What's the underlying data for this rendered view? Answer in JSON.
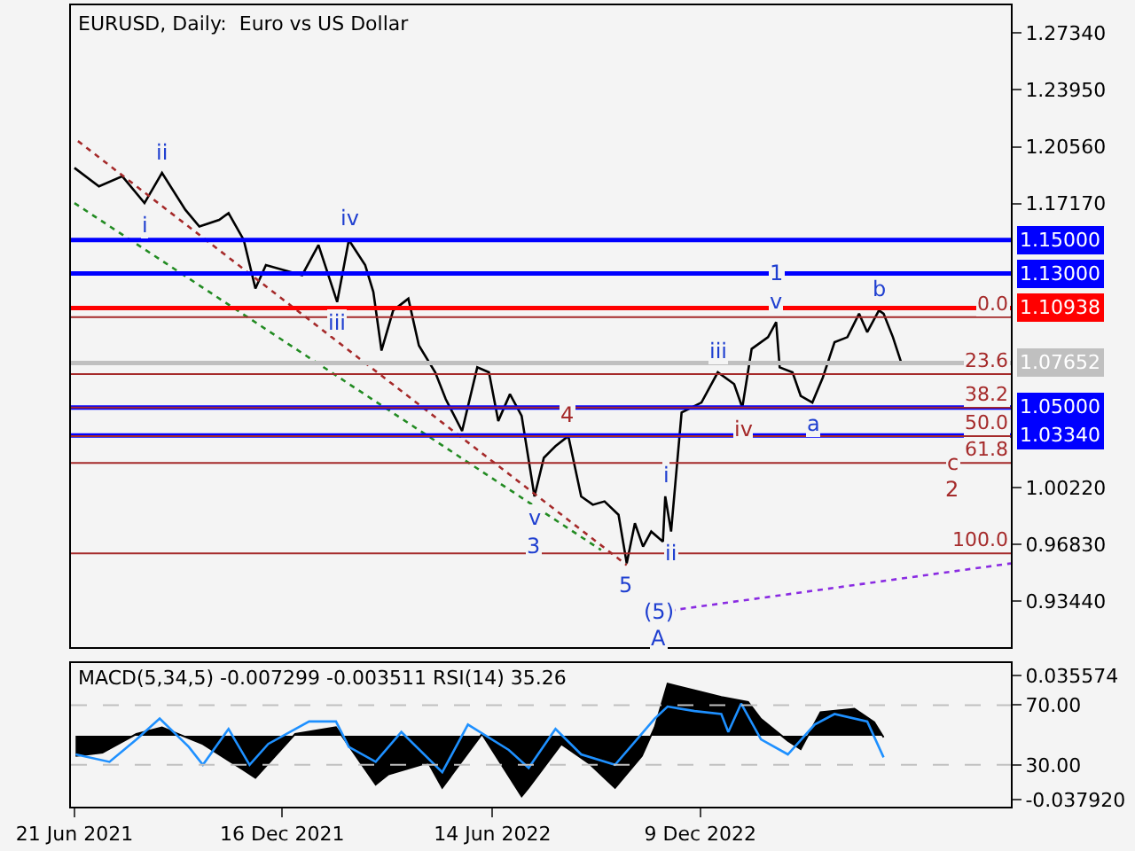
{
  "chart_data": [
    {
      "type": "line",
      "title": "EURUSD, Daily:  Euro vs US Dollar",
      "xlim": [
        "2021-06-18",
        "2023-09-01"
      ],
      "ylim": [
        0.907,
        1.29
      ],
      "tick_labels": "y",
      "yticks": [
        {
          "value": 1.2734,
          "label": "1.27340"
        },
        {
          "value": 1.2395,
          "label": "1.23950"
        },
        {
          "value": 1.2056,
          "label": "1.20560"
        },
        {
          "value": 1.1717,
          "label": "1.17170"
        },
        {
          "value": 1.0022,
          "label": "1.00220"
        },
        {
          "value": 0.9683,
          "label": "0.96830"
        },
        {
          "value": 0.9344,
          "label": "0.93440"
        }
      ],
      "series": [
        {
          "color": "#000000",
          "x": [
            "2021-06-21",
            "2021-07-12",
            "2021-08-01",
            "2021-08-20",
            "2021-09-04",
            "2021-09-24",
            "2021-10-06",
            "2021-10-23",
            "2021-10-31",
            "2021-11-13",
            "2021-11-23",
            "2021-12-02",
            "2022-01-02",
            "2022-01-16",
            "2022-02-01",
            "2022-02-11",
            "2022-02-25",
            "2022-03-04",
            "2022-03-11",
            "2022-03-21",
            "2022-04-03",
            "2022-04-12",
            "2022-04-26",
            "2022-05-05",
            "2022-05-19",
            "2022-06-01",
            "2022-06-11",
            "2022-06-19",
            "2022-06-29",
            "2022-07-09",
            "2022-07-20",
            "2022-07-28",
            "2022-08-07",
            "2022-08-18",
            "2022-08-29",
            "2022-09-08",
            "2022-09-18",
            "2022-09-30",
            "2022-10-07",
            "2022-10-14",
            "2022-10-21",
            "2022-10-28",
            "2022-11-07",
            "2022-11-09",
            "2022-11-14",
            "2022-11-23",
            "2022-12-10",
            "2022-12-24",
            "2023-01-07",
            "2023-01-14",
            "2023-01-22",
            "2023-02-05",
            "2023-02-12",
            "2023-02-15",
            "2023-02-26",
            "2023-03-05",
            "2023-03-15",
            "2023-03-24",
            "2023-04-03",
            "2023-04-14",
            "2023-04-24",
            "2023-05-01",
            "2023-05-11",
            "2023-05-15",
            "2023-05-23",
            "2023-05-30"
          ],
          "values": [
            1.193,
            1.182,
            1.188,
            1.172,
            1.19,
            1.168,
            1.158,
            1.162,
            1.166,
            1.15,
            1.121,
            1.135,
            1.129,
            1.147,
            1.113,
            1.15,
            1.135,
            1.119,
            1.084,
            1.108,
            1.115,
            1.087,
            1.071,
            1.055,
            1.036,
            1.074,
            1.071,
            1.042,
            1.058,
            1.045,
            0.997,
            1.02,
            1.027,
            1.033,
            0.997,
            0.992,
            0.994,
            0.986,
            0.957,
            0.981,
            0.967,
            0.976,
            0.97,
            0.997,
            0.976,
            1.047,
            1.053,
            1.071,
            1.064,
            1.05,
            1.085,
            1.092,
            1.101,
            1.074,
            1.071,
            1.057,
            1.053,
            1.068,
            1.089,
            1.092,
            1.106,
            1.095,
            1.108,
            1.106,
            1.092,
            1.077
          ]
        },
        {
          "color": "#228b22",
          "line_style": "dotted",
          "x": [
            "2021-06-21",
            "2022-09-15"
          ],
          "values": [
            1.172,
            0.965
          ]
        },
        {
          "color": "#a52a2a",
          "line_style": "dotted",
          "x": [
            "2021-06-24",
            "2022-10-07"
          ],
          "values": [
            1.209,
            0.956
          ]
        },
        {
          "color": "#8a2be2",
          "line_style": "dotted",
          "x": [
            "2022-11-04",
            "2023-09-01"
          ],
          "values": [
            0.928,
            0.957
          ]
        }
      ],
      "ref_lines": [
        {
          "axis": "y",
          "value": 1.15,
          "label": "1.15000",
          "color": "#0000ff"
        },
        {
          "axis": "y",
          "value": 1.13,
          "label": "1.13000",
          "color": "#0000ff"
        },
        {
          "axis": "y",
          "value": 1.10938,
          "label": "1.10938",
          "color": "#ff0000"
        },
        {
          "axis": "y",
          "value": 1.07652,
          "label": "1.07652",
          "color": "#c0c0c0"
        },
        {
          "axis": "y",
          "value": 1.05,
          "label": "1.05000",
          "color": "#0000ff"
        },
        {
          "axis": "y",
          "value": 1.0334,
          "label": "1.03340",
          "color": "#0000ff"
        },
        {
          "axis": "y",
          "value": 1.104,
          "color": "#a52a2a",
          "line_style": "solid"
        },
        {
          "axis": "y",
          "value": 1.07,
          "color": "#a52a2a",
          "line_style": "solid"
        },
        {
          "axis": "y",
          "value": 1.05,
          "color": "#a52a2a",
          "line_style": "solid"
        },
        {
          "axis": "y",
          "value": 1.033,
          "color": "#a52a2a",
          "line_style": "solid"
        },
        {
          "axis": "y",
          "value": 1.017,
          "color": "#a52a2a",
          "line_style": "solid"
        },
        {
          "axis": "y",
          "value": 0.963,
          "color": "#a52a2a",
          "line_style": "solid"
        }
      ],
      "annotations": [
        {
          "text": "i",
          "x": "2021-08-20",
          "y": 1.172
        },
        {
          "text": "ii",
          "x": "2021-09-04",
          "y": 1.19
        },
        {
          "text": "iii",
          "x": "2022-02-01",
          "y": 1.113
        },
        {
          "text": "iv",
          "x": "2022-02-11",
          "y": 1.15
        },
        {
          "text": "v",
          "x": "2022-07-20",
          "y": 0.997
        },
        {
          "text": "3",
          "x": "2022-07-20",
          "y": 0.997
        },
        {
          "text": "4",
          "x": "2022-08-18",
          "y": 1.033
        },
        {
          "text": "5",
          "x": "2022-10-07",
          "y": 0.957
        },
        {
          "text": "(5)",
          "x": "2022-11-04",
          "y": 0.928
        },
        {
          "text": "A",
          "x": "2022-11-04",
          "y": 0.928
        },
        {
          "text": "i",
          "x": "2022-11-09",
          "y": 0.997
        },
        {
          "text": "ii",
          "x": "2022-11-14",
          "y": 0.976
        },
        {
          "text": "iii",
          "x": "2022-12-24",
          "y": 1.071
        },
        {
          "text": "iv",
          "x": "2023-01-14",
          "y": 1.05
        },
        {
          "text": "v",
          "x": "2023-02-12",
          "y": 1.101
        },
        {
          "text": "1",
          "x": "2023-02-12",
          "y": 1.101
        },
        {
          "text": "a",
          "x": "2023-03-15",
          "y": 1.053
        },
        {
          "text": "b",
          "x": "2023-05-11",
          "y": 1.108
        },
        {
          "text": "c",
          "x": "2023-07-13",
          "y": 1.017
        },
        {
          "text": "2",
          "x": "2023-07-13",
          "y": 1.017
        },
        {
          "text": "0.0",
          "x": "2023-09-01",
          "y": 1.104
        },
        {
          "text": "23.6",
          "x": "2023-09-01",
          "y": 1.07
        },
        {
          "text": "38.2",
          "x": "2023-09-01",
          "y": 1.05
        },
        {
          "text": "50.0",
          "x": "2023-09-01",
          "y": 1.033
        },
        {
          "text": "61.8",
          "x": "2023-09-01",
          "y": 1.017
        },
        {
          "text": "100.0",
          "x": "2023-09-01",
          "y": 0.963
        }
      ]
    },
    {
      "type": "area",
      "title": "MACD(5,34,5) -0.007299 -0.003511 RSI(14) 35.26",
      "xlim": [
        "2021-06-18",
        "2023-09-01"
      ],
      "xticks": [
        {
          "value": "2021-06-21",
          "label": "21 Jun 2021"
        },
        {
          "value": "2021-12-16",
          "label": "16 Dec 2021"
        },
        {
          "value": "2022-06-14",
          "label": "14 Jun 2022"
        },
        {
          "value": "2022-12-09",
          "label": "9 Dec 2022"
        }
      ],
      "ylim": [
        -0.0422,
        0.0431
      ],
      "yticks": [
        {
          "value": 0.035574,
          "label": "0.035574"
        },
        {
          "value": -0.03792,
          "label": "-0.037920"
        }
      ],
      "y2lim": [
        2,
        98
      ],
      "y2ticks": [
        {
          "value": 70,
          "label": "70.00"
        },
        {
          "value": 30,
          "label": "30.00"
        }
      ],
      "series": [
        {
          "color": "#000000",
          "x": [
            "2021-06-22",
            "2021-07-15",
            "2021-08-13",
            "2021-09-04",
            "2021-10-09",
            "2021-11-12",
            "2021-11-23",
            "2021-12-27",
            "2022-01-31",
            "2022-03-06",
            "2022-03-17",
            "2022-04-20",
            "2022-05-02",
            "2022-06-05",
            "2022-07-09",
            "2022-07-15",
            "2022-08-12",
            "2022-09-04",
            "2022-09-27",
            "2022-10-20",
            "2022-10-31",
            "2022-11-11",
            "2022-12-04",
            "2022-12-27",
            "2023-01-19",
            "2023-01-30",
            "2023-02-22",
            "2023-03-05",
            "2023-03-22",
            "2023-04-20",
            "2023-05-07",
            "2023-05-15"
          ],
          "values": [
            -0.012,
            -0.01,
            0.001,
            0.005,
            -0.005,
            -0.02,
            -0.025,
            0.001,
            0.005,
            -0.029,
            -0.023,
            -0.016,
            -0.031,
            0.001,
            -0.036,
            -0.031,
            -0.005,
            -0.016,
            -0.031,
            -0.012,
            0.005,
            0.031,
            0.027,
            0.023,
            0.02,
            0.01,
            -0.003,
            -0.008,
            0.014,
            0.016,
            0.008,
            -0.001
          ]
        },
        {
          "color": "#1e90ff",
          "type": "line",
          "axis": "y2",
          "x": [
            "2021-06-22",
            "2021-07-21",
            "2021-08-13",
            "2021-09-02",
            "2021-09-27",
            "2021-10-09",
            "2021-10-31",
            "2021-11-18",
            "2021-12-04",
            "2022-01-08",
            "2022-01-31",
            "2022-02-11",
            "2022-03-06",
            "2022-03-28",
            "2022-05-02",
            "2022-05-24",
            "2022-06-28",
            "2022-07-15",
            "2022-08-07",
            "2022-08-29",
            "2022-09-27",
            "2022-10-31",
            "2022-11-11",
            "2022-12-04",
            "2022-12-27",
            "2023-01-02",
            "2023-01-13",
            "2023-01-30",
            "2023-02-22",
            "2023-03-17",
            "2023-04-03",
            "2023-05-01",
            "2023-05-15"
          ],
          "values": [
            37,
            32,
            47,
            61,
            42,
            30,
            54,
            30,
            44,
            59,
            59,
            42,
            32,
            52,
            25,
            57,
            40,
            28,
            54,
            37,
            30,
            61,
            69,
            66,
            64,
            52,
            71,
            47,
            37,
            57,
            64,
            59,
            35
          ]
        }
      ],
      "ref_lines": [
        {
          "axis": "y2",
          "value": 70,
          "color": "#c0c0c0",
          "line_style": "dashed"
        },
        {
          "axis": "y2",
          "value": 30,
          "color": "#c0c0c0",
          "line_style": "dashed"
        }
      ]
    }
  ]
}
